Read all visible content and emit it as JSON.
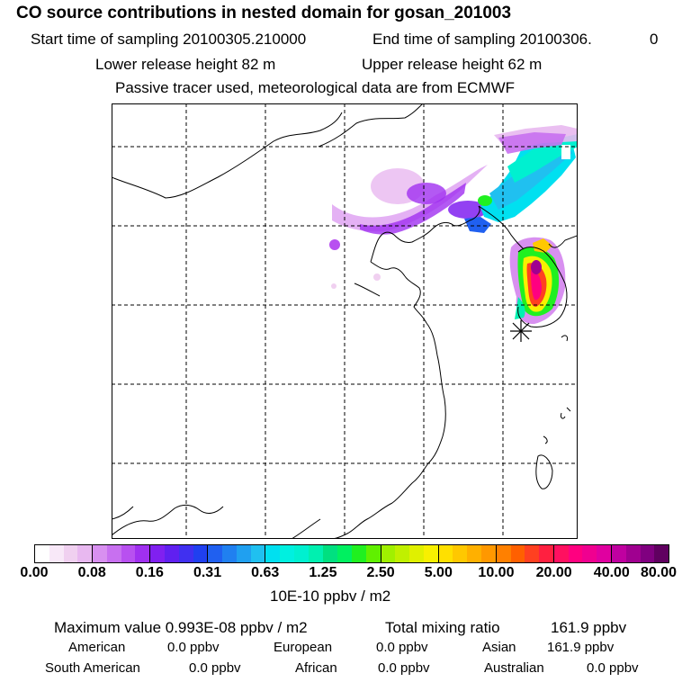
{
  "header": {
    "title": "CO  source contributions in nested domain for gosan_201003",
    "start_label": "Start time of sampling 20100305.210000",
    "end_label": "End time of sampling 20100306.",
    "end_value": "0",
    "lower_release": "Lower release height   82 m",
    "upper_release": "Upper release height   62 m",
    "tracer_note": "Passive tracer used, meteorological data are from ECMWF"
  },
  "map": {
    "receptor_icon": "asterisk-marker-icon",
    "grid": "dashed"
  },
  "colorbar": {
    "ticks": [
      "0.00",
      "0.08",
      "0.16",
      "0.31",
      "0.63",
      "1.25",
      "2.50",
      "5.00",
      "10.00",
      "20.00",
      "40.00",
      "80.00"
    ],
    "segments": [
      [
        "#ffffff",
        "#f8e8f8",
        "#f0d0f0",
        "#e8b8f0"
      ],
      [
        "#d890f0",
        "#c870f0",
        "#b850f0",
        "#a030f0"
      ],
      [
        "#8020f0",
        "#6020f0",
        "#4030f0",
        "#2040f0"
      ],
      [
        "#2060f0",
        "#2080f0",
        "#20a0f0",
        "#20c0f0"
      ],
      [
        "#00e0f0",
        "#00f0e0",
        "#00f0d0",
        "#00f0b0"
      ],
      [
        "#00e080",
        "#00f060",
        "#20f020",
        "#60f000"
      ],
      [
        "#a0f000",
        "#c0f000",
        "#e0f000",
        "#f8f000"
      ],
      [
        "#ffe000",
        "#ffc800",
        "#ffb000",
        "#ff9800"
      ],
      [
        "#ff8000",
        "#ff6000",
        "#ff4020",
        "#ff2040"
      ],
      [
        "#ff1060",
        "#ff0080",
        "#f00090",
        "#e000a0"
      ],
      [
        "#c000a0",
        "#a00090",
        "#800080",
        "#600060"
      ]
    ],
    "units": "10E-10 ppbv / m2"
  },
  "stats": {
    "max_label": "Maximum value  0.993E-08 ppbv / m2",
    "total_label": "Total mixing ratio",
    "total_value": "161.9 ppbv",
    "american_label": "American",
    "american_value": "0.0 ppbv",
    "european_label": "European",
    "european_value": "0.0 ppbv",
    "asian_label": "Asian",
    "asian_value": "161.9 ppbv",
    "south_american_label": "South American",
    "south_american_value": "0.0 ppbv",
    "african_label": "African",
    "african_value": "0.0 ppbv",
    "australian_label": "Australian",
    "australian_value": "0.0 ppbv"
  }
}
